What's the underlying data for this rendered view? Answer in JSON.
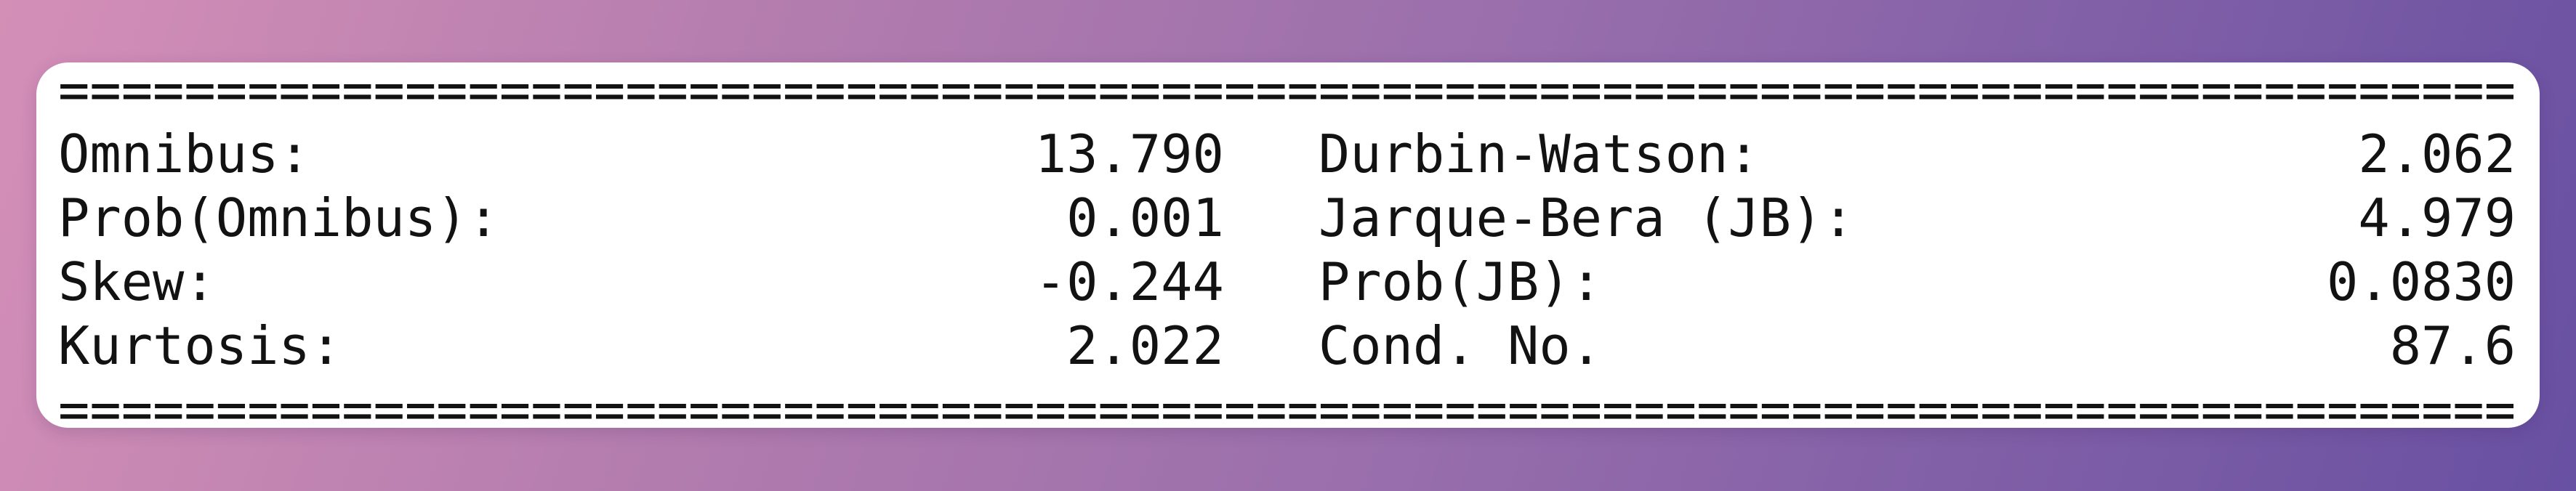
{
  "colors": {
    "background_gradient_start": "#d48fb7",
    "background_gradient_mid": "#9a6fac",
    "background_gradient_end": "#6850a2",
    "card_background": "#ffffff",
    "text": "#121212"
  },
  "table": {
    "separator": "==============================================================================",
    "rows": [
      {
        "left_label": "Omnibus:",
        "left_value": "13.790",
        "right_label": "Durbin-Watson:",
        "right_value": "2.062"
      },
      {
        "left_label": "Prob(Omnibus):",
        "left_value": "0.001",
        "right_label": "Jarque-Bera (JB):",
        "right_value": "4.979"
      },
      {
        "left_label": "Skew:",
        "left_value": "-0.244",
        "right_label": "Prob(JB):",
        "right_value": "0.0830"
      },
      {
        "left_label": "Kurtosis:",
        "left_value": "2.022",
        "right_label": "Cond. No.",
        "right_value": "87.6"
      }
    ]
  }
}
